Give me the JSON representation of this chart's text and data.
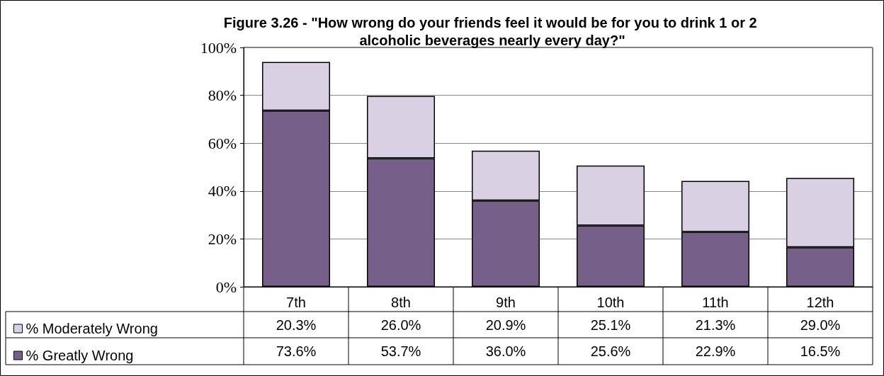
{
  "chart_data": {
    "type": "bar",
    "title": "Figure 3.26 - \"How wrong do your friends feel it would be for you to drink 1 or 2 alcoholic beverages nearly every day?\"",
    "categories": [
      "7th",
      "8th",
      "9th",
      "10th",
      "11th",
      "12th"
    ],
    "stacked": true,
    "series": [
      {
        "name": "% Greatly Wrong",
        "color": "#76608a",
        "values": [
          73.6,
          53.7,
          36.0,
          25.6,
          22.9,
          16.5
        ],
        "value_labels": [
          "73.6%",
          "53.7%",
          "36.0%",
          "25.6%",
          "22.9%",
          "16.5%"
        ]
      },
      {
        "name": "% Moderately Wrong",
        "color": "#d9d0e3",
        "values": [
          20.3,
          26.0,
          20.9,
          25.1,
          21.3,
          29.0
        ],
        "value_labels": [
          "20.3%",
          "26.0%",
          "20.9%",
          "25.1%",
          "21.3%",
          "29.0%"
        ]
      }
    ],
    "ylim": [
      0,
      100
    ],
    "yticks": [
      {
        "value": 0,
        "label": "0%"
      },
      {
        "value": 20,
        "label": "20%"
      },
      {
        "value": 40,
        "label": "40%"
      },
      {
        "value": 60,
        "label": "60%"
      },
      {
        "value": 80,
        "label": "80%"
      },
      {
        "value": 100,
        "label": "100%"
      }
    ],
    "grid": "y",
    "legend": "bottom left"
  }
}
